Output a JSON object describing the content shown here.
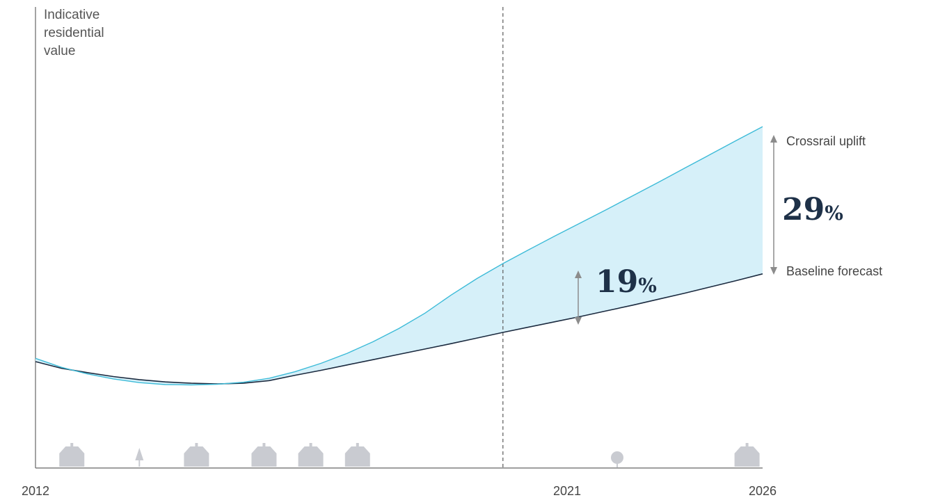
{
  "chart_data": {
    "type": "line",
    "ylabel": [
      "Indicative",
      "residential",
      "value"
    ],
    "x_ticks": [
      "2012",
      "2021",
      "2026"
    ],
    "x_range": [
      2012,
      2026
    ],
    "y_range": [
      0,
      100
    ],
    "reference_line": {
      "x": 2021,
      "style": "dashed"
    },
    "series": [
      {
        "name": "Baseline forecast",
        "color": "#1b2a3f",
        "points": [
          [
            2012,
            32
          ],
          [
            2012.5,
            30
          ],
          [
            2013,
            28.7
          ],
          [
            2013.5,
            27.5
          ],
          [
            2014,
            26.6
          ],
          [
            2014.5,
            25.9
          ],
          [
            2015,
            25.5
          ],
          [
            2015.5,
            25.3
          ],
          [
            2016,
            25.5
          ],
          [
            2016.5,
            26.3
          ],
          [
            2017,
            27.9
          ],
          [
            2017.5,
            29.4
          ],
          [
            2018,
            31.0
          ],
          [
            2018.5,
            32.6
          ],
          [
            2019,
            34.2
          ],
          [
            2019.5,
            35.8
          ],
          [
            2020,
            37.4
          ],
          [
            2020.5,
            39.1
          ],
          [
            2021,
            40.8
          ],
          [
            2021.5,
            42.4
          ],
          [
            2022,
            44.0
          ],
          [
            2022.5,
            45.6
          ],
          [
            2023,
            47.3
          ],
          [
            2023.5,
            49.0
          ],
          [
            2024,
            50.8
          ],
          [
            2024.5,
            52.6
          ],
          [
            2025,
            54.5
          ],
          [
            2025.5,
            56.4
          ],
          [
            2026,
            58.4
          ]
        ]
      },
      {
        "name": "Crossrail uplift",
        "color": "#3dbbd8",
        "points": [
          [
            2012,
            33
          ],
          [
            2012.5,
            30.3
          ],
          [
            2013,
            28.3
          ],
          [
            2013.5,
            26.8
          ],
          [
            2014,
            25.7
          ],
          [
            2014.5,
            25.1
          ],
          [
            2015,
            25.0
          ],
          [
            2015.5,
            25.2
          ],
          [
            2016,
            25.8
          ],
          [
            2016.5,
            27.0
          ],
          [
            2017,
            29.0
          ],
          [
            2017.5,
            31.5
          ],
          [
            2018,
            34.5
          ],
          [
            2018.5,
            38.0
          ],
          [
            2019,
            42.0
          ],
          [
            2019.5,
            46.6
          ],
          [
            2020,
            52.0
          ],
          [
            2020.5,
            57.0
          ],
          [
            2021,
            61.5
          ],
          [
            2021.5,
            65.7
          ],
          [
            2022,
            69.8
          ],
          [
            2022.5,
            73.8
          ],
          [
            2023,
            77.8
          ],
          [
            2023.5,
            81.9
          ],
          [
            2024,
            86.0
          ],
          [
            2024.5,
            90.2
          ],
          [
            2025,
            94.4
          ],
          [
            2025.5,
            98.6
          ],
          [
            2026,
            102.7
          ]
        ]
      }
    ],
    "area_fill": "#d6f0f9",
    "annotations": [
      {
        "text": "19",
        "suffix": "%",
        "x": 2021
      },
      {
        "text": "29",
        "suffix": "%",
        "x": 2026
      }
    ],
    "end_labels": {
      "upper": "Crossrail uplift",
      "lower": "Baseline forecast"
    },
    "icons": [
      {
        "name": "house-icon",
        "x": 2012.7
      },
      {
        "name": "tree-icon",
        "x": 2014.0
      },
      {
        "name": "house-icon",
        "x": 2015.1
      },
      {
        "name": "house-icon",
        "x": 2016.4
      },
      {
        "name": "house-icon",
        "x": 2017.3
      },
      {
        "name": "house-icon",
        "x": 2018.2
      },
      {
        "name": "round-tree-icon",
        "x": 2023.2
      },
      {
        "name": "house-icon",
        "x": 2025.7
      }
    ]
  }
}
